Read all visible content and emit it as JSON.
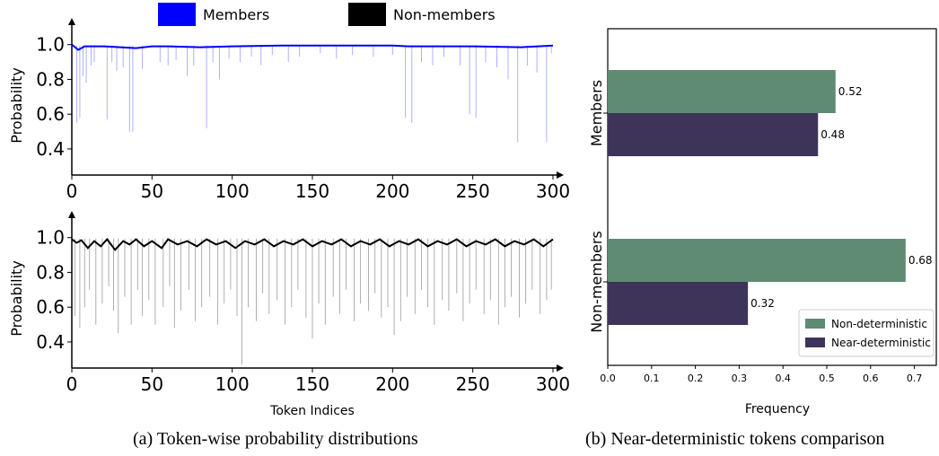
{
  "captions": {
    "a": "(a) Token-wise probability distributions",
    "b": "(b) Near-deterministic tokens comparison"
  },
  "chart_data": [
    {
      "type": "line",
      "panel": "a-top",
      "xlabel": "",
      "ylabel": "Probability",
      "xlim": [
        0,
        300
      ],
      "ylim": [
        0.25,
        1.05
      ],
      "xticks": [
        0,
        50,
        100,
        150,
        200,
        250,
        300
      ],
      "yticks": [
        0.4,
        0.6,
        0.8,
        1.0
      ],
      "legend": {
        "placement": "top",
        "entries": [
          {
            "name": "Members",
            "color": "#0000ff"
          },
          {
            "name": "Non-members",
            "color": "#000000"
          }
        ]
      },
      "series": [
        {
          "name": "Members",
          "color": "#0000ff",
          "style": "mean",
          "points": [
            [
              0,
              1.0
            ],
            [
              2,
              0.985
            ],
            [
              4,
              0.97
            ],
            [
              8,
              0.99
            ],
            [
              20,
              0.99
            ],
            [
              30,
              0.985
            ],
            [
              40,
              0.98
            ],
            [
              50,
              0.99
            ],
            [
              60,
              0.99
            ],
            [
              80,
              0.985
            ],
            [
              100,
              0.99
            ],
            [
              130,
              0.995
            ],
            [
              150,
              0.995
            ],
            [
              200,
              0.995
            ],
            [
              210,
              0.99
            ],
            [
              250,
              0.99
            ],
            [
              280,
              0.985
            ],
            [
              300,
              0.995
            ]
          ]
        },
        {
          "name": "Members",
          "color": "#0000ff",
          "style": "individual-dips",
          "points": [
            [
              3,
              0.55
            ],
            [
              5,
              0.58
            ],
            [
              7,
              0.82
            ],
            [
              9,
              0.78
            ],
            [
              12,
              0.88
            ],
            [
              14,
              0.9
            ],
            [
              22,
              0.57
            ],
            [
              25,
              0.9
            ],
            [
              28,
              0.85
            ],
            [
              32,
              0.87
            ],
            [
              36,
              0.5
            ],
            [
              38,
              0.5
            ],
            [
              44,
              0.86
            ],
            [
              55,
              0.9
            ],
            [
              60,
              0.88
            ],
            [
              65,
              0.91
            ],
            [
              72,
              0.82
            ],
            [
              76,
              0.88
            ],
            [
              84,
              0.52
            ],
            [
              88,
              0.9
            ],
            [
              92,
              0.8
            ],
            [
              98,
              0.92
            ],
            [
              105,
              0.9
            ],
            [
              112,
              0.93
            ],
            [
              118,
              0.88
            ],
            [
              125,
              0.94
            ],
            [
              135,
              0.9
            ],
            [
              142,
              0.93
            ],
            [
              155,
              0.95
            ],
            [
              165,
              0.92
            ],
            [
              175,
              0.94
            ],
            [
              188,
              0.93
            ],
            [
              200,
              0.94
            ],
            [
              208,
              0.58
            ],
            [
              212,
              0.55
            ],
            [
              218,
              0.9
            ],
            [
              225,
              0.88
            ],
            [
              232,
              0.93
            ],
            [
              242,
              0.88
            ],
            [
              248,
              0.6
            ],
            [
              252,
              0.58
            ],
            [
              258,
              0.9
            ],
            [
              265,
              0.87
            ],
            [
              272,
              0.8
            ],
            [
              278,
              0.44
            ],
            [
              284,
              0.88
            ],
            [
              290,
              0.84
            ],
            [
              296,
              0.44
            ],
            [
              299,
              0.95
            ]
          ]
        }
      ]
    },
    {
      "type": "line",
      "panel": "a-bottom",
      "xlabel": "Token Indices",
      "ylabel": "Probability",
      "xlim": [
        0,
        300
      ],
      "ylim": [
        0.25,
        1.05
      ],
      "xticks": [
        0,
        50,
        100,
        150,
        200,
        250,
        300
      ],
      "yticks": [
        0.4,
        0.6,
        0.8,
        1.0
      ],
      "series": [
        {
          "name": "Non-members",
          "color": "#000000",
          "style": "mean",
          "points": [
            [
              0,
              0.99
            ],
            [
              3,
              0.97
            ],
            [
              6,
              0.985
            ],
            [
              10,
              0.94
            ],
            [
              14,
              0.98
            ],
            [
              18,
              0.95
            ],
            [
              22,
              0.99
            ],
            [
              27,
              0.93
            ],
            [
              32,
              0.98
            ],
            [
              36,
              0.96
            ],
            [
              40,
              0.99
            ],
            [
              45,
              0.95
            ],
            [
              50,
              0.98
            ],
            [
              56,
              0.94
            ],
            [
              60,
              0.99
            ],
            [
              66,
              0.96
            ],
            [
              72,
              0.98
            ],
            [
              78,
              0.95
            ],
            [
              84,
              0.99
            ],
            [
              90,
              0.96
            ],
            [
              96,
              0.98
            ],
            [
              102,
              0.94
            ],
            [
              108,
              0.98
            ],
            [
              114,
              0.96
            ],
            [
              120,
              0.99
            ],
            [
              126,
              0.95
            ],
            [
              132,
              0.98
            ],
            [
              138,
              0.96
            ],
            [
              144,
              0.99
            ],
            [
              150,
              0.95
            ],
            [
              156,
              0.98
            ],
            [
              162,
              0.96
            ],
            [
              168,
              0.99
            ],
            [
              174,
              0.95
            ],
            [
              180,
              0.98
            ],
            [
              186,
              0.96
            ],
            [
              192,
              0.99
            ],
            [
              198,
              0.95
            ],
            [
              204,
              0.98
            ],
            [
              210,
              0.96
            ],
            [
              216,
              0.99
            ],
            [
              222,
              0.95
            ],
            [
              228,
              0.98
            ],
            [
              234,
              0.96
            ],
            [
              240,
              0.99
            ],
            [
              246,
              0.95
            ],
            [
              252,
              0.98
            ],
            [
              258,
              0.96
            ],
            [
              264,
              0.99
            ],
            [
              270,
              0.95
            ],
            [
              276,
              0.98
            ],
            [
              282,
              0.96
            ],
            [
              288,
              0.99
            ],
            [
              294,
              0.95
            ],
            [
              300,
              0.99
            ]
          ]
        },
        {
          "name": "Non-members",
          "color": "#000000",
          "style": "individual-dips",
          "points": [
            [
              2,
              0.55
            ],
            [
              5,
              0.48
            ],
            [
              8,
              0.6
            ],
            [
              11,
              0.7
            ],
            [
              15,
              0.5
            ],
            [
              19,
              0.62
            ],
            [
              23,
              0.72
            ],
            [
              26,
              0.58
            ],
            [
              29,
              0.45
            ],
            [
              33,
              0.66
            ],
            [
              37,
              0.5
            ],
            [
              41,
              0.7
            ],
            [
              44,
              0.55
            ],
            [
              48,
              0.64
            ],
            [
              52,
              0.5
            ],
            [
              57,
              0.6
            ],
            [
              61,
              0.72
            ],
            [
              64,
              0.48
            ],
            [
              68,
              0.58
            ],
            [
              73,
              0.7
            ],
            [
              77,
              0.52
            ],
            [
              81,
              0.6
            ],
            [
              86,
              0.66
            ],
            [
              91,
              0.5
            ],
            [
              95,
              0.62
            ],
            [
              99,
              0.7
            ],
            [
              103,
              0.55
            ],
            [
              106,
              0.27
            ],
            [
              110,
              0.6
            ],
            [
              115,
              0.52
            ],
            [
              119,
              0.68
            ],
            [
              123,
              0.56
            ],
            [
              128,
              0.64
            ],
            [
              133,
              0.5
            ],
            [
              137,
              0.6
            ],
            [
              141,
              0.7
            ],
            [
              146,
              0.54
            ],
            [
              150,
              0.42
            ],
            [
              154,
              0.62
            ],
            [
              158,
              0.5
            ],
            [
              163,
              0.66
            ],
            [
              167,
              0.56
            ],
            [
              171,
              0.7
            ],
            [
              176,
              0.52
            ],
            [
              180,
              0.62
            ],
            [
              185,
              0.58
            ],
            [
              189,
              0.68
            ],
            [
              193,
              0.54
            ],
            [
              197,
              0.6
            ],
            [
              201,
              0.44
            ],
            [
              205,
              0.52
            ],
            [
              209,
              0.66
            ],
            [
              214,
              0.56
            ],
            [
              218,
              0.7
            ],
            [
              222,
              0.6
            ],
            [
              226,
              0.5
            ],
            [
              231,
              0.64
            ],
            [
              235,
              0.58
            ],
            [
              240,
              0.68
            ],
            [
              244,
              0.52
            ],
            [
              248,
              0.62
            ],
            [
              252,
              0.7
            ],
            [
              257,
              0.56
            ],
            [
              261,
              0.64
            ],
            [
              266,
              0.5
            ],
            [
              270,
              0.6
            ],
            [
              274,
              0.66
            ],
            [
              279,
              0.54
            ],
            [
              283,
              0.62
            ],
            [
              287,
              0.7
            ],
            [
              292,
              0.56
            ],
            [
              296,
              0.64
            ],
            [
              299,
              0.7
            ]
          ]
        }
      ]
    },
    {
      "type": "bar",
      "panel": "b",
      "orientation": "horizontal",
      "xlabel": "Frequency",
      "ylabel": "",
      "xlim": [
        0,
        0.75
      ],
      "xticks": [
        "0.0",
        "0.1",
        "0.2",
        "0.3",
        "0.4",
        "0.5",
        "0.6",
        "0.7"
      ],
      "categories": [
        "Members",
        "Non-members"
      ],
      "legend": {
        "placement": "bottom-right"
      },
      "series": [
        {
          "name": "Non-deterministic",
          "color": "#5f8b72",
          "values": [
            0.52,
            0.68
          ]
        },
        {
          "name": "Near-deterministic",
          "color": "#3e3459",
          "values": [
            0.48,
            0.32
          ]
        }
      ]
    }
  ]
}
